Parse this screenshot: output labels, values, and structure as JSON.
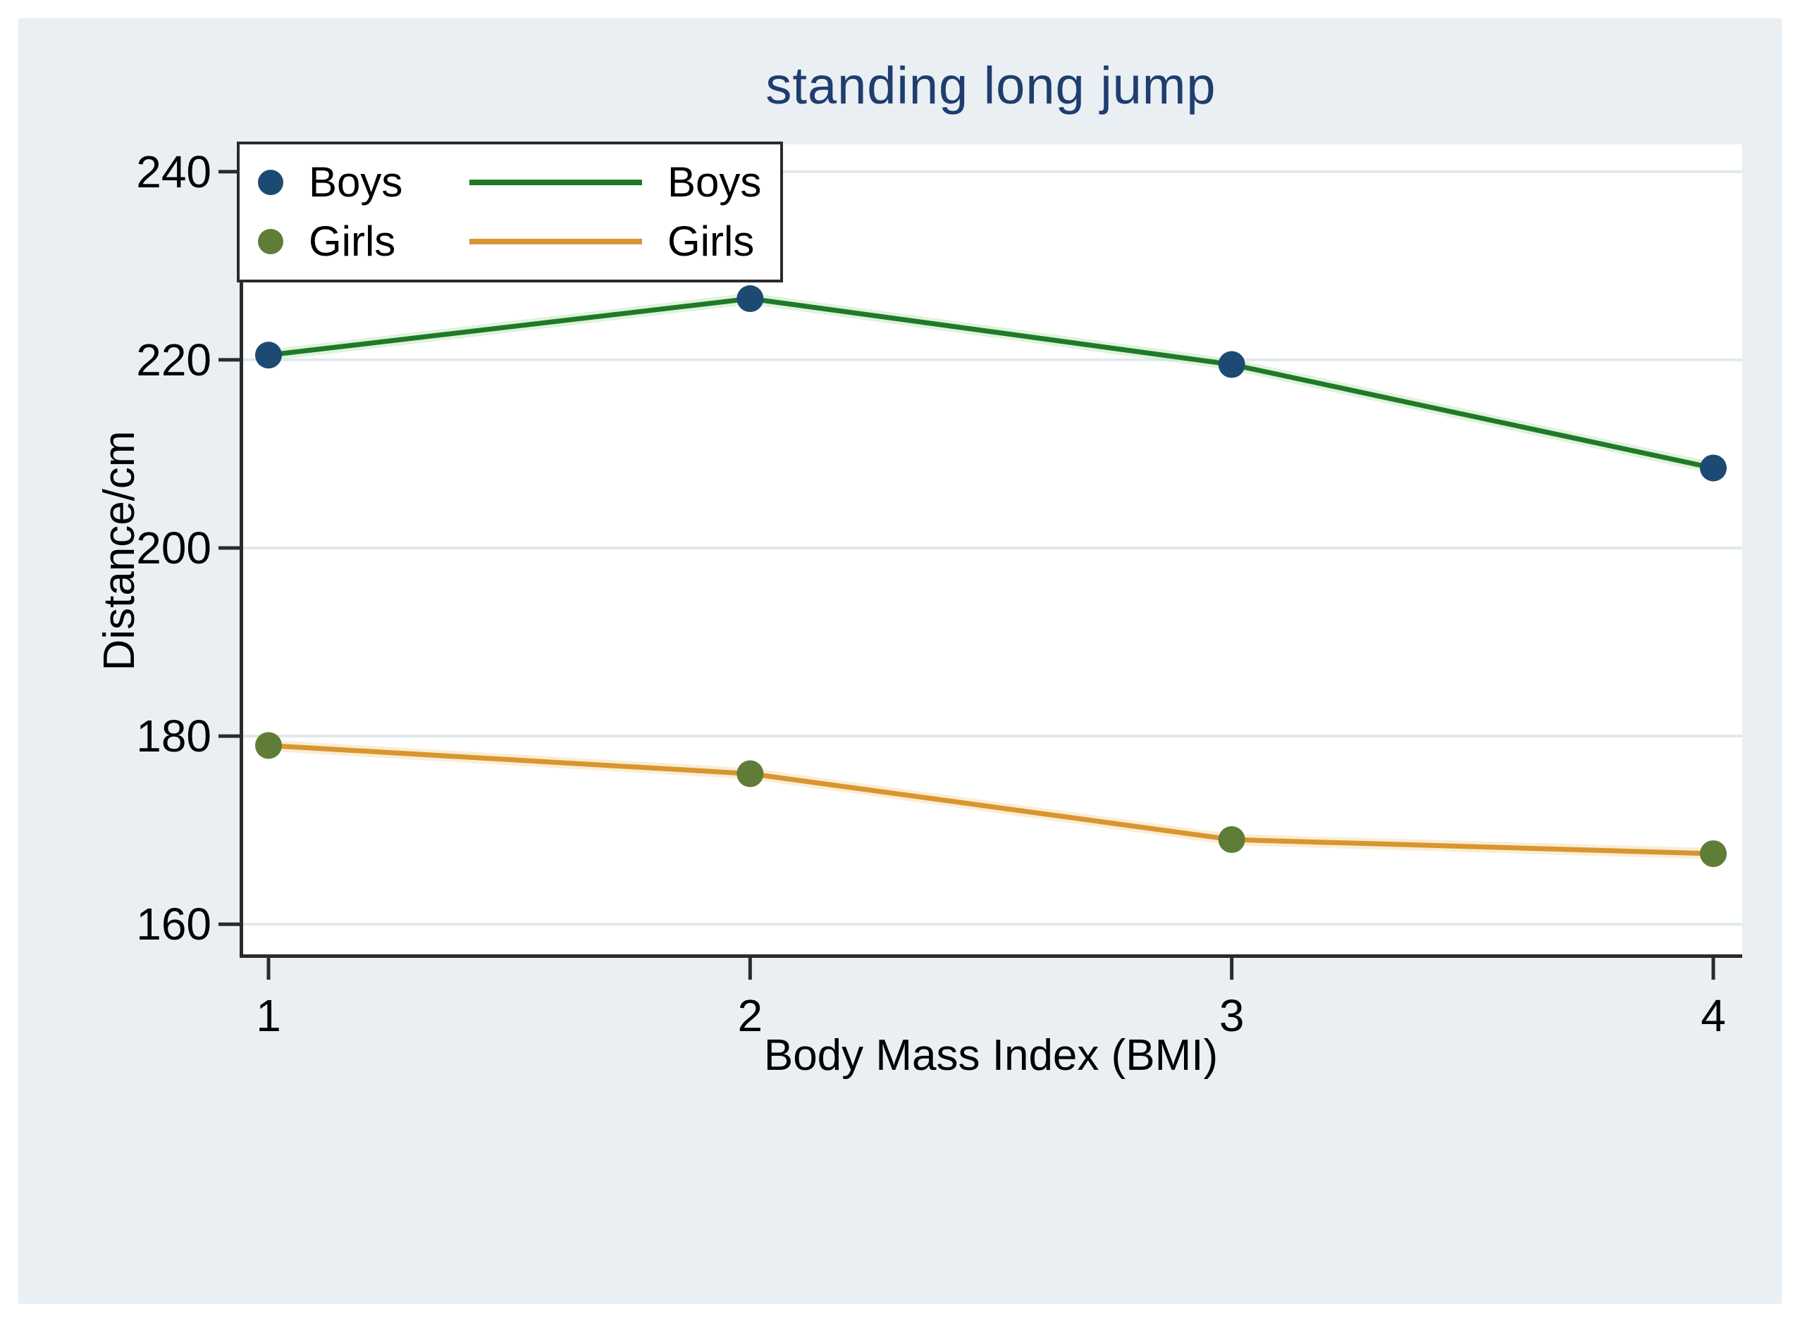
{
  "title": "standing long jump",
  "axes": {
    "y_label": "Distance/cm",
    "x_label": "Body Mass Index (BMI)"
  },
  "legend": {
    "rows": [
      {
        "marker_label": "Boys",
        "line_label": "Boys"
      },
      {
        "marker_label": "Girls",
        "line_label": "Girls"
      }
    ]
  },
  "chart_data": {
    "type": "line",
    "x": [
      1,
      2,
      3,
      4
    ],
    "xticks": [
      1,
      2,
      3,
      4
    ],
    "yticks": [
      160,
      180,
      200,
      220,
      240
    ],
    "xlim": [
      0.94,
      4.06
    ],
    "ylim": [
      156.8,
      242.9
    ],
    "grid": true,
    "legend_position": "top-left",
    "title": "standing long jump",
    "xlabel": "Body Mass Index (BMI)",
    "ylabel": "Distance/cm",
    "series": [
      {
        "name": "Boys",
        "values": [
          220.5,
          226.5,
          219.5,
          208.5
        ],
        "marker_color": "#1d4a73",
        "line_color": "#1f7a28",
        "halo_color": "#bfe6b8"
      },
      {
        "name": "Girls",
        "values": [
          179,
          176,
          169,
          167.5
        ],
        "marker_color": "#5f7d36",
        "line_color": "#d9952f",
        "halo_color": "#f3ddab"
      }
    ]
  },
  "colors": {
    "canvas_background": "#e9eff3",
    "plot_background": "#ffffff",
    "gridline": "#dfe9ee",
    "axis": "#2b2b2b",
    "title_text": "#1f3d6e",
    "tick_text": "#000000"
  }
}
